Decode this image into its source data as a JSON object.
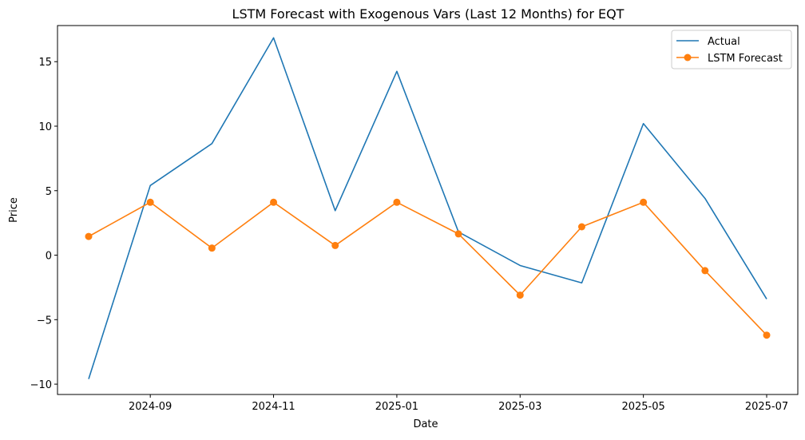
{
  "chart_data": {
    "type": "line",
    "title": "LSTM Forecast with Exogenous Vars (Last 12 Months) for EQT",
    "xlabel": "Date",
    "ylabel": "Price",
    "x": [
      "2024-08",
      "2024-09",
      "2024-10",
      "2024-11",
      "2024-12",
      "2025-01",
      "2025-02",
      "2025-03",
      "2025-04",
      "2025-05",
      "2025-06",
      "2025-07"
    ],
    "x_tick_labels": [
      "2024-09",
      "2024-11",
      "2025-01",
      "2025-03",
      "2025-05",
      "2025-07"
    ],
    "y_ticks": [
      -10,
      -5,
      0,
      5,
      10,
      15
    ],
    "y_tick_labels": [
      "−10",
      "−5",
      "0",
      "5",
      "10",
      "15"
    ],
    "ylim": [
      -10.8,
      17.8
    ],
    "grid": false,
    "legend_position": "top-right",
    "series": [
      {
        "name": "Actual",
        "color": "#1f77b4",
        "marker": "none",
        "values": [
          -9.6,
          5.4,
          8.65,
          16.85,
          3.45,
          14.25,
          1.8,
          -0.8,
          -2.15,
          10.2,
          4.4,
          -3.4
        ]
      },
      {
        "name": "LSTM Forecast",
        "color": "#ff7f0e",
        "marker": "circle",
        "values": [
          1.45,
          4.1,
          0.55,
          4.1,
          0.75,
          4.1,
          1.65,
          -3.1,
          2.2,
          4.1,
          -1.2,
          -6.2
        ]
      }
    ]
  }
}
